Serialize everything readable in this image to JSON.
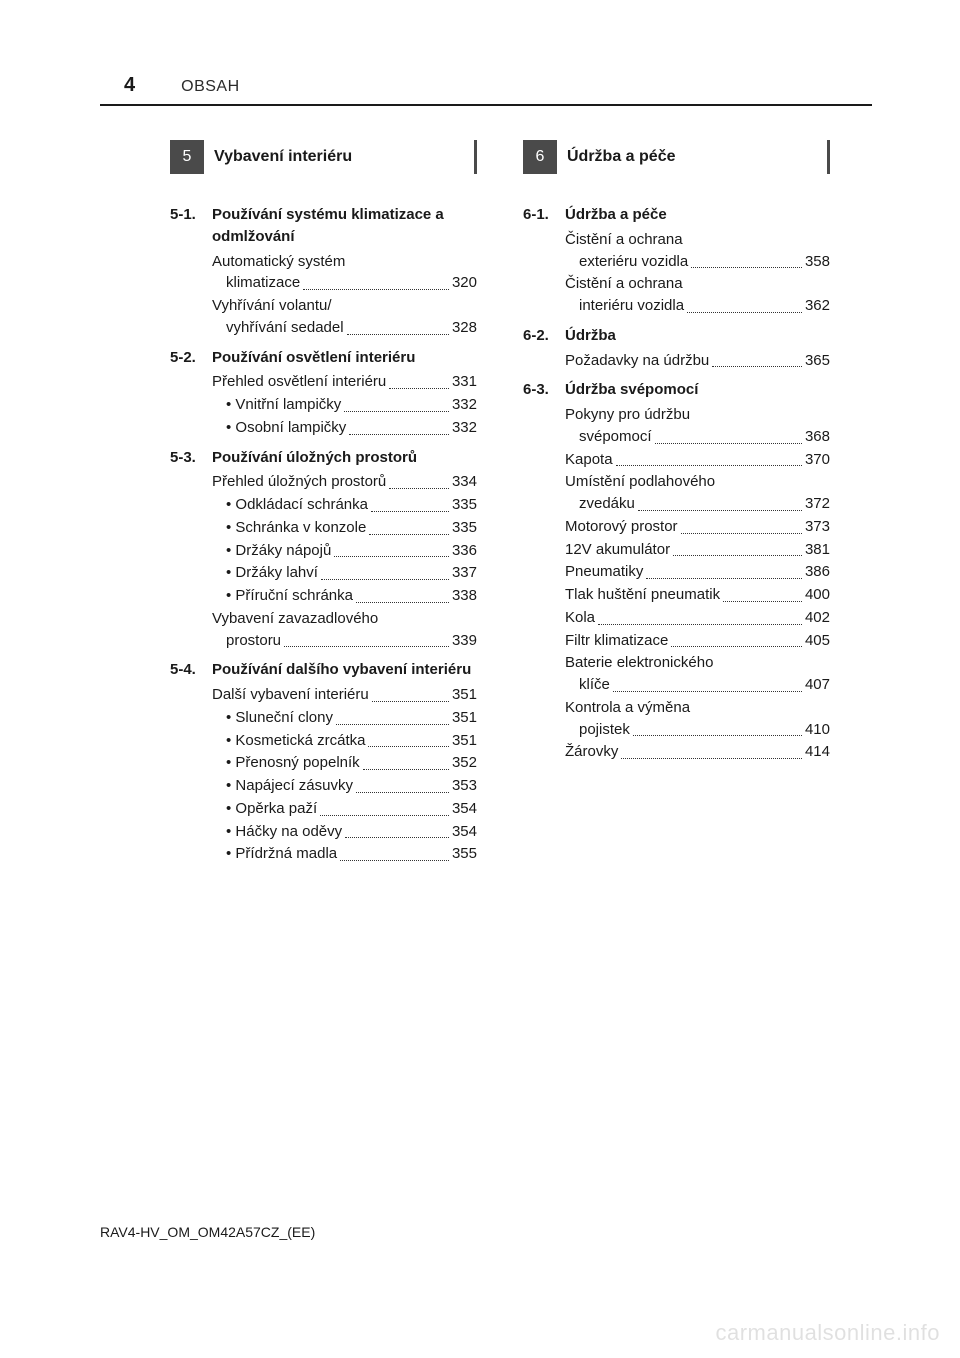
{
  "page_number": "4",
  "header_label": "OBSAH",
  "footer": "RAV4-HV_OM_OM42A57CZ_(EE)",
  "watermark": "carmanualsonline.info",
  "colors": {
    "text": "#1a1a1a",
    "rule": "#1a1a1a",
    "chapter_bg": "#4a4a4a",
    "chapter_fg": "#ffffff",
    "watermark": "rgba(0,0,0,0.12)",
    "background": "#ffffff"
  },
  "left": {
    "chapter_num": "5",
    "chapter_title": "Vybavení interiéru",
    "sections": [
      {
        "num": "5-1.",
        "title": "Používání systému klimatizace a odmlžování",
        "entries": [
          {
            "label": "Automatický systém",
            "cont": "klimatizace",
            "page": "320"
          },
          {
            "label": "Vyhřívání volantu/",
            "cont": "vyhřívání sedadel",
            "page": "328"
          }
        ]
      },
      {
        "num": "5-2.",
        "title": "Používání osvětlení interiéru",
        "entries": [
          {
            "label": "Přehled osvětlení interiéru",
            "page": "331",
            "tight": true
          },
          {
            "label": "• Vnitřní lampičky",
            "page": "332",
            "sub": true
          },
          {
            "label": "• Osobní lampičky",
            "page": "332",
            "sub": true
          }
        ]
      },
      {
        "num": "5-3.",
        "title": "Používání úložných prostorů",
        "entries": [
          {
            "label": "Přehled úložných prostorů",
            "page": "334",
            "tight": true
          },
          {
            "label": "• Odkládací schránka",
            "page": "335",
            "sub": true
          },
          {
            "label": "• Schránka v konzole",
            "page": "335",
            "sub": true
          },
          {
            "label": "• Držáky nápojů",
            "page": "336",
            "sub": true
          },
          {
            "label": "• Držáky lahví",
            "page": "337",
            "sub": true
          },
          {
            "label": "• Příruční schránka",
            "page": "338",
            "sub": true
          },
          {
            "label": "Vybavení zavazadlového",
            "cont": "prostoru",
            "page": "339"
          }
        ]
      },
      {
        "num": "5-4.",
        "title": "Používání dalšího vybavení interiéru",
        "entries": [
          {
            "label": "Další vybavení interiéru",
            "page": "351"
          },
          {
            "label": "• Sluneční clony",
            "page": "351",
            "sub": true
          },
          {
            "label": "• Kosmetická zrcátka",
            "page": "351",
            "sub": true
          },
          {
            "label": "• Přenosný popelník",
            "page": "352",
            "sub": true
          },
          {
            "label": "• Napájecí zásuvky",
            "page": "353",
            "sub": true
          },
          {
            "label": "• Opěrka paží",
            "page": "354",
            "sub": true
          },
          {
            "label": "• Háčky na oděvy",
            "page": "354",
            "sub": true
          },
          {
            "label": "• Přídržná madla",
            "page": "355",
            "sub": true
          }
        ]
      }
    ]
  },
  "right": {
    "chapter_num": "6",
    "chapter_title": "Údržba a péče",
    "sections": [
      {
        "num": "6-1.",
        "title": "Údržba a péče",
        "entries": [
          {
            "label": "Čistění a ochrana",
            "cont": "exteriéru vozidla",
            "page": "358"
          },
          {
            "label": "Čistění a ochrana",
            "cont": "interiéru vozidla",
            "page": "362"
          }
        ]
      },
      {
        "num": "6-2.",
        "title": "Údržba",
        "entries": [
          {
            "label": "Požadavky na údržbu",
            "page": "365"
          }
        ]
      },
      {
        "num": "6-3.",
        "title": "Údržba svépomocí",
        "entries": [
          {
            "label": "Pokyny pro údržbu",
            "cont": "svépomocí",
            "page": "368"
          },
          {
            "label": "Kapota",
            "page": "370"
          },
          {
            "label": "Umístění podlahového",
            "cont": "zvedáku",
            "page": "372"
          },
          {
            "label": "Motorový prostor",
            "page": "373"
          },
          {
            "label": "12V akumulátor",
            "page": "381"
          },
          {
            "label": "Pneumatiky",
            "page": "386"
          },
          {
            "label": "Tlak huštění pneumatik",
            "page": "400"
          },
          {
            "label": "Kola",
            "page": "402"
          },
          {
            "label": "Filtr klimatizace",
            "page": "405"
          },
          {
            "label": "Baterie elektronického",
            "cont": "klíče",
            "page": "407"
          },
          {
            "label": "Kontrola a výměna",
            "cont": "pojistek",
            "page": "410"
          },
          {
            "label": "Žárovky",
            "page": "414"
          }
        ]
      }
    ]
  }
}
